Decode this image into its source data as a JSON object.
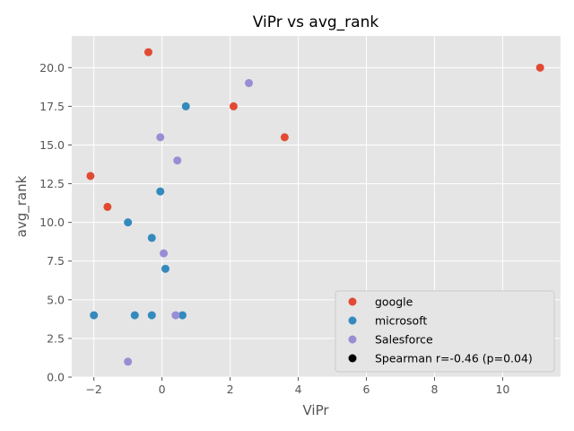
{
  "chart_data": {
    "type": "scatter",
    "title": "ViPr vs avg_rank",
    "xlabel": "ViPr",
    "ylabel": "avg_rank",
    "xlim": [
      -2.65,
      11.7
    ],
    "ylim": [
      0,
      22.05
    ],
    "xticks": [
      -2,
      0,
      2,
      4,
      6,
      8,
      10
    ],
    "yticks": [
      0.0,
      2.5,
      5.0,
      7.5,
      10.0,
      12.5,
      15.0,
      17.5,
      20.0
    ],
    "grid": true,
    "legend_position": "lower-right",
    "series": [
      {
        "name": "google",
        "color": "#E24A33",
        "points": [
          [
            -0.4,
            21
          ],
          [
            11.1,
            20
          ],
          [
            2.1,
            17.5
          ],
          [
            3.6,
            15.5
          ],
          [
            -2.1,
            13
          ],
          [
            -1.6,
            11
          ]
        ]
      },
      {
        "name": "microsoft",
        "color": "#348ABD",
        "points": [
          [
            0.7,
            17.5
          ],
          [
            -0.05,
            12
          ],
          [
            -1.0,
            10
          ],
          [
            -0.3,
            9
          ],
          [
            0.1,
            7
          ],
          [
            -2.0,
            4
          ],
          [
            -0.8,
            4
          ],
          [
            -0.3,
            4
          ],
          [
            0.6,
            4
          ]
        ]
      },
      {
        "name": "Salesforce",
        "color": "#988ED5",
        "points": [
          [
            2.55,
            19
          ],
          [
            -0.05,
            15.5
          ],
          [
            0.45,
            14
          ],
          [
            0.05,
            8
          ],
          [
            0.4,
            4
          ],
          [
            -1.0,
            1
          ]
        ]
      }
    ],
    "annotation": {
      "label": "Spearman r=-0.46 (p=0.04)",
      "color": "#000000"
    }
  }
}
